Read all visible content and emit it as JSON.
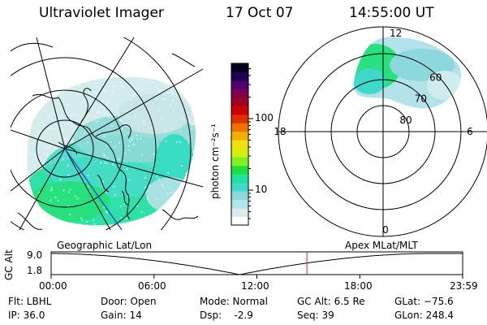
{
  "header": {
    "instrument": "Ultraviolet Imager",
    "date": "17 Oct 07",
    "time": "14:55:00 UT"
  },
  "colorbar": {
    "label": "photon cm⁻²s⁻¹",
    "ticks": [
      {
        "label": "100",
        "value": 100
      },
      {
        "label": "10",
        "value": 10
      }
    ],
    "colors": [
      "#ffffff",
      "#d8ecec",
      "#b4e2ea",
      "#8cd8dc",
      "#40d8c8",
      "#20e0a0",
      "#20e040",
      "#80f020",
      "#d0f010",
      "#f0e010",
      "#f0b000",
      "#f07000",
      "#e03000",
      "#d00000",
      "#a00020",
      "#800050",
      "#500070",
      "#200050",
      "#000020"
    ]
  },
  "left_panel": {
    "caption": "Geographic Lat/Lon"
  },
  "right_panel": {
    "caption": "Apex MLat/MLT",
    "mlt_labels": [
      {
        "label": "12",
        "angle": 90
      },
      {
        "label": "18",
        "angle": 180
      },
      {
        "label": "6",
        "angle": 0
      },
      {
        "label": "0",
        "angle": 270
      }
    ],
    "lat_labels": [
      {
        "label": "60",
        "lat": 60
      },
      {
        "label": "70",
        "lat": 70
      },
      {
        "label": "80",
        "lat": 80
      }
    ]
  },
  "altitude": {
    "axis_label": "GC Alt",
    "y_ticks": [
      "9.0",
      "1.8"
    ],
    "x_ticks": [
      "00:00",
      "06:00",
      "12:00",
      "18:00",
      "23:59"
    ],
    "marker_time": "14:55",
    "marker_color": "#e02020"
  },
  "footer": {
    "filter": "Flt: LBHL",
    "ip": "IP: 36.0",
    "door": "Door: Open",
    "gain": "Gain: 14",
    "mode": "Mode: Normal",
    "dsp": "Dsp:    -2.9",
    "gc_alt": "GC Alt: 6.5 Re",
    "seq": "Seq: 39",
    "glat": "GLat: −75.6",
    "glon": "GLon: 248.4"
  }
}
